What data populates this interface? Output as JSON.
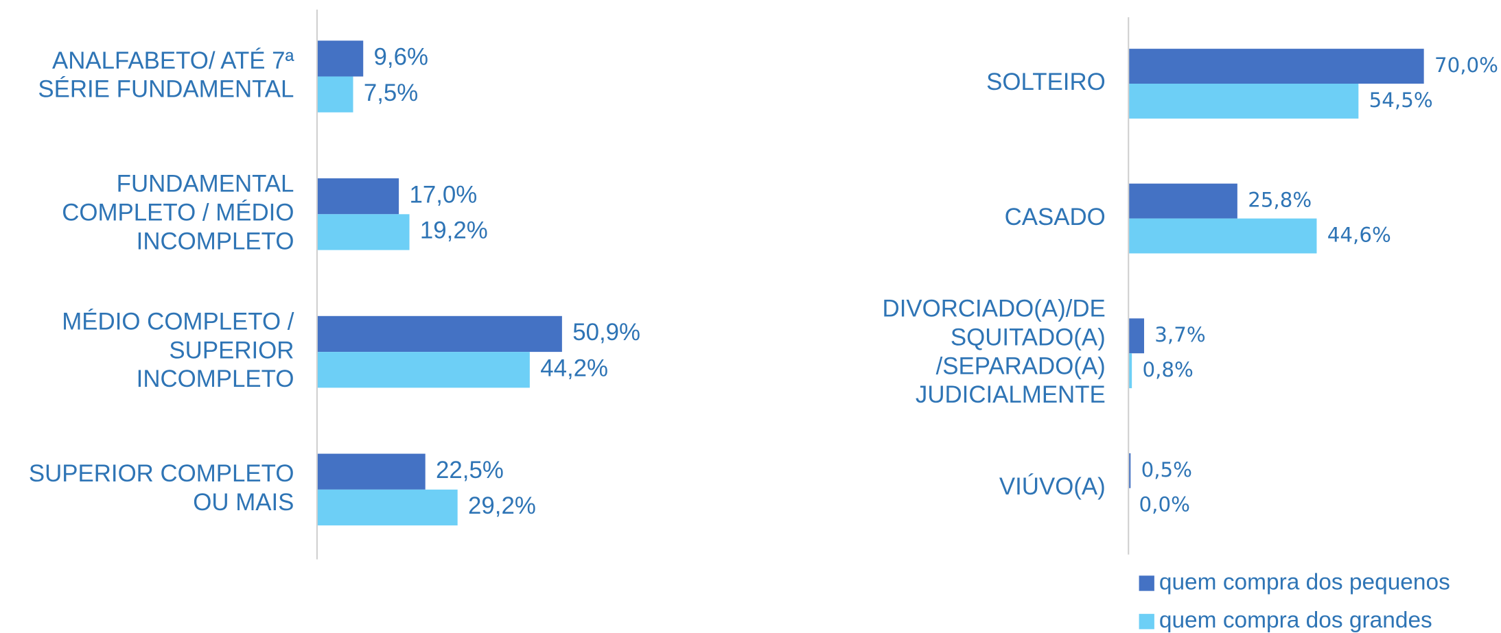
{
  "chart_data": [
    {
      "type": "bar",
      "orientation": "horizontal",
      "categories": [
        [
          "ANALFABETO/ ATÉ 7ª",
          "SÉRIE FUNDAMENTAL"
        ],
        [
          "FUNDAMENTAL",
          "COMPLETO / MÉDIO",
          "INCOMPLETO"
        ],
        [
          "MÉDIO COMPLETO /",
          "SUPERIOR",
          "INCOMPLETO"
        ],
        [
          "SUPERIOR COMPLETO",
          "OU MAIS"
        ]
      ],
      "xlim": [
        0,
        100
      ],
      "series": [
        {
          "color": "#4472c4",
          "values": [
            9.6,
            17.0,
            50.9,
            22.5
          ],
          "value_labels": [
            "9,6%",
            "17,0%",
            "50,9%",
            "22,5%"
          ]
        },
        {
          "color": "#6dcff6",
          "values": [
            7.5,
            19.2,
            44.2,
            29.2
          ],
          "value_labels": [
            "7,5%",
            "19,2%",
            "44,2%",
            "29,2%"
          ]
        }
      ]
    },
    {
      "type": "bar",
      "orientation": "horizontal",
      "categories": [
        [
          "SOLTEIRO"
        ],
        [
          "CASADO"
        ],
        [
          "DIVORCIADO(A)/DE",
          "SQUITADO(A)",
          "/SEPARADO(A)",
          "JUDICIALMENTE"
        ],
        [
          "VIÚVO(A)"
        ]
      ],
      "xlim": [
        0,
        100
      ],
      "legend": "bottom-right",
      "series": [
        {
          "name": "quem compra dos pequenos",
          "color": "#4472c4",
          "values": [
            70.0,
            25.8,
            3.7,
            0.5
          ],
          "value_labels": [
            "70,0%",
            "25,8%",
            "3,7%",
            "0,5%"
          ]
        },
        {
          "name": "quem compra dos grandes",
          "color": "#6dcff6",
          "values": [
            54.5,
            44.6,
            0.8,
            0.0
          ],
          "value_labels": [
            "54,5%",
            "44,6%",
            "0,8%",
            "0,0%"
          ]
        }
      ]
    }
  ]
}
